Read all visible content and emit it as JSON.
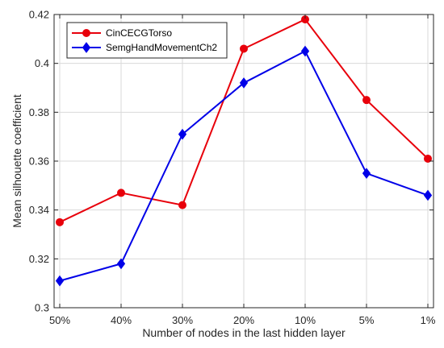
{
  "chart_data": {
    "type": "line",
    "title": "",
    "xlabel": "Number of nodes in the last hidden layer",
    "ylabel": "Mean silhouette coefficient",
    "categories": [
      "50%",
      "40%",
      "30%",
      "20%",
      "10%",
      "5%",
      "1%"
    ],
    "ylim": [
      0.3,
      0.42
    ],
    "yticks": [
      "0.3",
      "0.32",
      "0.34",
      "0.36",
      "0.38",
      "0.4",
      "0.42"
    ],
    "grid": true,
    "legend_position": "top-left",
    "series": [
      {
        "name": "CinCECGTorso",
        "values": [
          0.335,
          0.347,
          0.342,
          0.406,
          0.418,
          0.385,
          0.361
        ],
        "color": "#e8000b",
        "marker": "circle"
      },
      {
        "name": "SemgHandMovementCh2",
        "values": [
          0.311,
          0.318,
          0.371,
          0.392,
          0.405,
          0.355,
          0.346
        ],
        "color": "#0000e8",
        "marker": "diamond"
      }
    ]
  }
}
